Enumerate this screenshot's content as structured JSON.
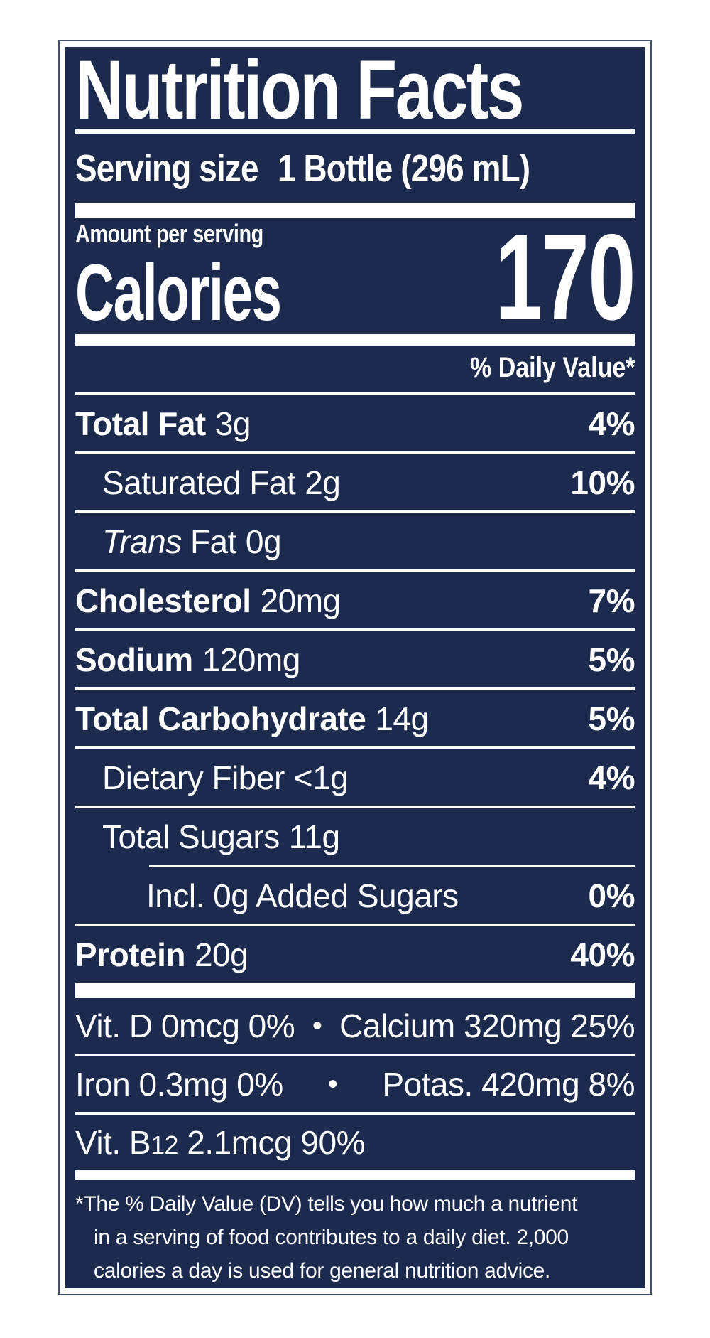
{
  "label": {
    "title": "Nutrition Facts",
    "serving": {
      "label": "Serving size",
      "value": "1 Bottle (296 mL)"
    },
    "amount_per_serving": "Amount per serving",
    "calories_label": "Calories",
    "calories_value": "170",
    "daily_value_header": "% Daily Value*",
    "rows": [
      {
        "name": "Total Fat",
        "amount": "3g",
        "dv": "4%"
      },
      {
        "name": "Saturated Fat",
        "amount": "2g",
        "dv": "10%"
      },
      {
        "name_italic": "Trans",
        "name": " Fat",
        "amount": "0g",
        "dv": ""
      },
      {
        "name": "Cholesterol",
        "amount": "20mg",
        "dv": "7%"
      },
      {
        "name": "Sodium",
        "amount": "120mg",
        "dv": "5%"
      },
      {
        "name": "Total Carbohydrate",
        "amount": "14g",
        "dv": "5%"
      },
      {
        "name": "Dietary Fiber",
        "amount": "<1g",
        "dv": "4%"
      },
      {
        "name": "Total Sugars",
        "amount": "11g",
        "dv": ""
      },
      {
        "name": "Incl. 0g Added Sugars",
        "amount": "",
        "dv": "0%"
      },
      {
        "name": "Protein",
        "amount": "20g",
        "dv": "40%"
      }
    ],
    "micronutrients": [
      {
        "left": "Vit. D 0mcg 0%",
        "separator": "•",
        "right": "Calcium 320mg 25%"
      },
      {
        "left": "Iron 0.3mg 0%",
        "separator": "•",
        "right": "Potas. 420mg 8%"
      },
      {
        "left_pre": "Vit. B",
        "left_sub": "12",
        "left_post": " 2.1mcg 90%"
      }
    ],
    "footnote_lines": [
      "*The % Daily Value (DV) tells you how much a nutrient",
      "in a serving of food contributes to a daily diet. 2,000",
      "calories a day is used for general nutrition advice."
    ],
    "colors": {
      "panel_navy": "#1c2b4d",
      "text_white": "#ffffff"
    }
  }
}
